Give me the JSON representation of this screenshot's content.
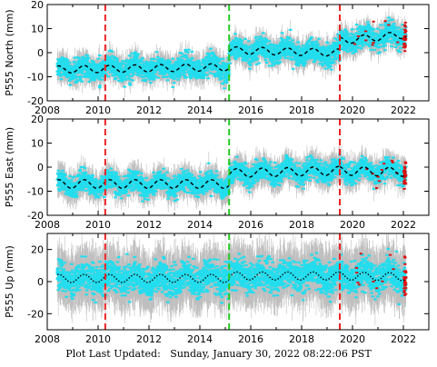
{
  "footer": {
    "label": "Plot Last Updated:",
    "timestamp": "Sunday, January 30, 2022 08:22:06 PST"
  },
  "colors": {
    "observations": "#22ddee",
    "error_bars": "#b4b4b4",
    "model_fit": "#000000",
    "outliers": "#dd1111",
    "offset_earthquake": "#ee2222",
    "offset_equipment": "#22cc22"
  },
  "chart_data": [
    {
      "type": "scatter",
      "station": "P555",
      "component": "North",
      "ylabel": "P555 North (mm)",
      "xlim": [
        2008,
        2023
      ],
      "ylim": [
        -20,
        20
      ],
      "x_ticks": [
        2008,
        2010,
        2012,
        2014,
        2016,
        2018,
        2020,
        2022
      ],
      "y_ticks": [
        -20,
        -10,
        0,
        10,
        20
      ],
      "x_tick_labels_visible": true,
      "trend_segments": [
        {
          "start": 2008.4,
          "end": 2015.15,
          "start_value": -7,
          "end_value": -6,
          "seasonal_amplitude": 1.5
        },
        {
          "start": 2015.15,
          "end": 2019.5,
          "start_value": 1,
          "end_value": 0,
          "seasonal_amplitude": 1.5
        },
        {
          "start": 2019.5,
          "end": 2022.1,
          "start_value": 5,
          "end_value": 7.5,
          "seasonal_amplitude": 1.5
        }
      ],
      "scatter_sd": 2.2,
      "error_bar_halfwidth": 3.5,
      "fit_line_style": "dashed",
      "offset_lines": [
        {
          "x": 2010.28,
          "kind": "earthquake"
        },
        {
          "x": 2015.15,
          "kind": "equipment"
        },
        {
          "x": 2019.5,
          "kind": "earthquake"
        }
      ]
    },
    {
      "type": "scatter",
      "station": "P555",
      "component": "East",
      "ylabel": "P555 East (mm)",
      "xlim": [
        2008,
        2023
      ],
      "ylim": [
        -20,
        20
      ],
      "x_ticks": [
        2008,
        2010,
        2012,
        2014,
        2016,
        2018,
        2020,
        2022
      ],
      "y_ticks": [
        -20,
        -10,
        0,
        10,
        20
      ],
      "x_tick_labels_visible": true,
      "trend_segments": [
        {
          "start": 2008.4,
          "end": 2015.15,
          "start_value": -7,
          "end_value": -7,
          "seasonal_amplitude": 1.8
        },
        {
          "start": 2015.15,
          "end": 2019.5,
          "start_value": -2.5,
          "end_value": -1.5,
          "seasonal_amplitude": 1.8
        },
        {
          "start": 2019.5,
          "end": 2022.1,
          "start_value": -1.5,
          "end_value": -2,
          "seasonal_amplitude": 1.8
        }
      ],
      "scatter_sd": 2.0,
      "error_bar_halfwidth": 4.0,
      "fit_line_style": "dashed",
      "offset_lines": [
        {
          "x": 2010.28,
          "kind": "earthquake"
        },
        {
          "x": 2015.15,
          "kind": "equipment"
        },
        {
          "x": 2019.5,
          "kind": "earthquake"
        }
      ]
    },
    {
      "type": "scatter",
      "station": "P555",
      "component": "Up",
      "ylabel": "P555 Up (mm)",
      "xlim": [
        2008,
        2023
      ],
      "ylim": [
        -30,
        30
      ],
      "x_ticks": [
        2008,
        2010,
        2012,
        2014,
        2016,
        2018,
        2020,
        2022
      ],
      "y_ticks": [
        -20,
        0,
        20
      ],
      "x_tick_labels_visible": true,
      "trend_segments": [
        {
          "start": 2008.4,
          "end": 2015.15,
          "start_value": 2,
          "end_value": 2,
          "seasonal_amplitude": 2.5
        },
        {
          "start": 2015.15,
          "end": 2019.5,
          "start_value": 3.5,
          "end_value": 3.5,
          "seasonal_amplitude": 2.5
        },
        {
          "start": 2019.5,
          "end": 2022.1,
          "start_value": 3.5,
          "end_value": 3,
          "seasonal_amplitude": 2.5
        }
      ],
      "scatter_sd": 4.5,
      "error_bar_halfwidth": 12.0,
      "fit_line_style": "dotted",
      "offset_lines": [
        {
          "x": 2010.28,
          "kind": "earthquake"
        },
        {
          "x": 2015.15,
          "kind": "equipment"
        },
        {
          "x": 2019.5,
          "kind": "earthquake"
        }
      ]
    }
  ]
}
